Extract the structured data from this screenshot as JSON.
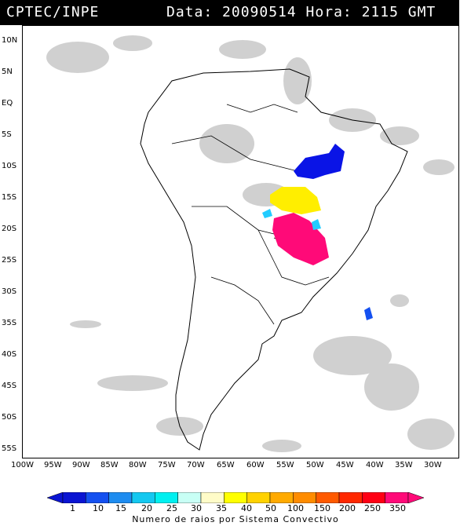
{
  "header": {
    "agency": "CPTEC/INPE",
    "timestamp": "Data: 20090514 Hora: 2115 GMT"
  },
  "map": {
    "lat_labels": [
      "10N",
      "5N",
      "EQ",
      "5S",
      "10S",
      "15S",
      "20S",
      "25S",
      "30S",
      "35S",
      "40S",
      "45S",
      "50S",
      "55S"
    ],
    "lon_labels": [
      "100W",
      "95W",
      "90W",
      "85W",
      "80W",
      "75W",
      "70W",
      "65W",
      "60W",
      "55W",
      "50W",
      "45W",
      "40W",
      "35W",
      "30W"
    ],
    "colors": {
      "cloud": "#c8c8c8",
      "coast": "#000000",
      "blue": "#0a14e6",
      "yellow": "#ffee00",
      "magenta": "#ff0a78",
      "cyan": "#22ccff"
    }
  },
  "legend": {
    "ticks": [
      "1",
      "10",
      "15",
      "20",
      "25",
      "30",
      "35",
      "40",
      "50",
      "100",
      "150",
      "200",
      "250",
      "350"
    ],
    "colors": [
      "#0a14d2",
      "#1450f0",
      "#1e8cf0",
      "#14c8f0",
      "#00f0f0",
      "#c8fff5",
      "#fffcc8",
      "#ffff00",
      "#ffd200",
      "#ffaa00",
      "#ff8c00",
      "#ff5a00",
      "#ff2800",
      "#ff0014",
      "#ff0a78"
    ],
    "caption": "Numero de raios por Sistema Convectivo"
  }
}
